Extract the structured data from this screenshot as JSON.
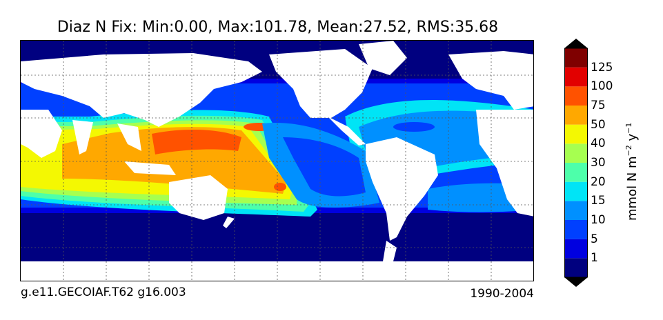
{
  "title": "Diaz N Fix: Min:0.00, Max:101.78, Mean:27.52, RMS:35.68",
  "footer": {
    "left": "g.e11.GECOIAF.T62 g16.003",
    "right": "1990-2004"
  },
  "colorbar": {
    "tick_labels": [
      "1",
      "5",
      "10",
      "15",
      "20",
      "30",
      "40",
      "50",
      "75",
      "100",
      "125"
    ],
    "colors": [
      "#00007f",
      "#0000e0",
      "#0040ff",
      "#0090ff",
      "#00e4f6",
      "#4dffaa",
      "#a6ff50",
      "#f4f802",
      "#ffa800",
      "#ff5200",
      "#e20000",
      "#7f0000"
    ],
    "extend": "both",
    "units_base": "mmol N m",
    "units_exp1": "−2",
    "units_mid": " y",
    "units_exp2": "−1"
  },
  "map": {
    "background_color": "#000080",
    "land_color": "#ffffff",
    "grid": "dotted"
  }
}
